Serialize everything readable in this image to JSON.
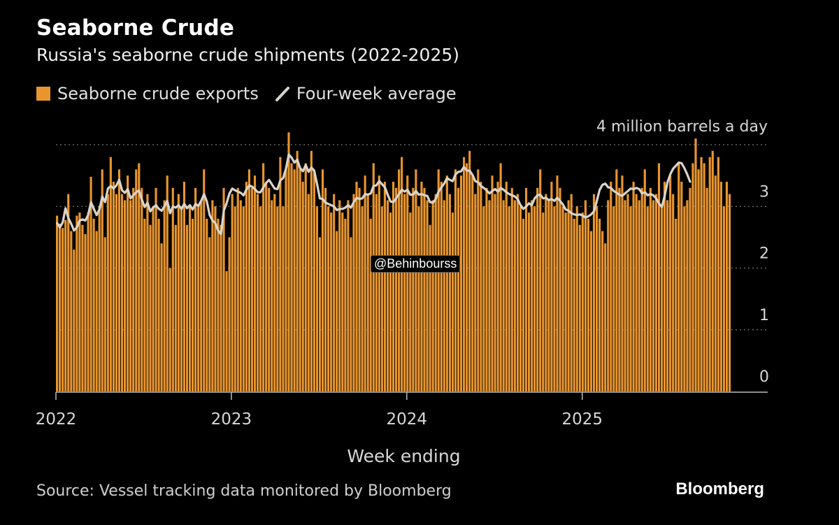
{
  "header": {
    "title": "Seaborne Crude",
    "subtitle": "Russia's seaborne crude shipments (2022-2025)"
  },
  "legend": {
    "bars_label": "Seaborne crude exports",
    "line_label": "Four-week average"
  },
  "source": "Source: Vessel tracking data monitored by Bloomberg",
  "brand": "Bloomberg",
  "watermark_tag": "@Behinbourss",
  "colors": {
    "bar": "#E8952E",
    "line": "#D9D5CC",
    "grid": "#777777",
    "background": "#000000"
  },
  "chart_data": {
    "type": "bar",
    "title": "Seaborne Crude",
    "subtitle": "Russia's seaborne crude shipments (2022-2025)",
    "xlabel": "Week ending",
    "ylabel": "",
    "ylim": [
      0,
      4
    ],
    "y_ticks": [
      0,
      1,
      2,
      3
    ],
    "top_annotation": "4 million barrels a day",
    "x_ticks": [
      "2022",
      "2023",
      "2024",
      "2025"
    ],
    "x_start": 2022.0,
    "x_end": 2025.85,
    "series": [
      {
        "name": "Seaborne crude exports",
        "type": "bar",
        "values": [
          2.85,
          2.72,
          2.65,
          2.78,
          3.2,
          2.6,
          2.3,
          2.85,
          2.9,
          2.7,
          2.55,
          2.9,
          3.48,
          2.8,
          2.6,
          3.0,
          3.6,
          2.5,
          3.2,
          3.8,
          3.4,
          3.2,
          3.6,
          3.2,
          3.1,
          3.5,
          3.1,
          3.3,
          3.6,
          3.7,
          3.3,
          2.8,
          3.2,
          2.7,
          3.0,
          3.3,
          2.8,
          2.4,
          3.1,
          3.5,
          2.0,
          3.3,
          2.7,
          3.2,
          3.0,
          3.4,
          2.7,
          3.0,
          2.8,
          3.3,
          3.0,
          3.1,
          3.6,
          2.8,
          2.5,
          3.1,
          3.0,
          2.8,
          2.7,
          3.3,
          1.95,
          2.5,
          3.2,
          3.0,
          3.3,
          3.1,
          3.0,
          3.4,
          3.6,
          3.3,
          3.5,
          3.2,
          3.0,
          3.7,
          3.4,
          3.3,
          3.1,
          3.2,
          3.0,
          3.8,
          3.0,
          3.6,
          4.2,
          3.7,
          3.6,
          3.9,
          3.6,
          3.4,
          3.7,
          3.2,
          3.9,
          3.6,
          3.0,
          2.5,
          3.6,
          3.3,
          3.0,
          2.9,
          3.2,
          2.6,
          3.1,
          2.9,
          2.8,
          3.1,
          2.5,
          3.2,
          3.4,
          3.3,
          3.0,
          3.5,
          3.2,
          2.8,
          3.7,
          3.2,
          3.5,
          3.0,
          3.4,
          3.1,
          2.9,
          3.4,
          3.3,
          3.6,
          3.8,
          3.2,
          3.5,
          2.9,
          3.3,
          3.6,
          3.0,
          3.4,
          3.3,
          3.1,
          2.7,
          3.1,
          3.2,
          3.6,
          3.4,
          3.1,
          3.5,
          3.2,
          2.9,
          3.6,
          3.3,
          3.5,
          3.8,
          3.7,
          3.9,
          3.5,
          3.2,
          3.6,
          3.4,
          3.0,
          3.3,
          3.1,
          3.5,
          3.2,
          3.4,
          3.7,
          3.1,
          3.4,
          3.0,
          3.3,
          3.1,
          3.2,
          3.0,
          2.8,
          3.3,
          2.9,
          3.1,
          3.0,
          3.3,
          3.6,
          2.9,
          3.2,
          3.1,
          3.4,
          3.0,
          3.5,
          3.3,
          3.0,
          2.9,
          3.1,
          3.2,
          2.8,
          3.0,
          2.7,
          2.9,
          3.1,
          2.8,
          2.6,
          3.2,
          3.0,
          2.8,
          2.6,
          2.4,
          3.1,
          3.4,
          3.0,
          3.6,
          3.3,
          3.5,
          3.1,
          3.2,
          3.0,
          3.4,
          3.2,
          3.1,
          3.3,
          3.6,
          3.0,
          3.3,
          3.1,
          3.2,
          3.7,
          3.0,
          3.4,
          3.1,
          3.5,
          3.2,
          2.8,
          3.7,
          3.4,
          3.0,
          3.1,
          3.3,
          3.7,
          4.1,
          3.6,
          3.8,
          3.7,
          3.3,
          3.8,
          3.9,
          3.5,
          3.8,
          3.4,
          3.0,
          3.4,
          3.2
        ]
      },
      {
        "name": "Four-week average",
        "type": "line",
        "values": [
          2.73,
          2.66,
          2.74,
          2.97,
          2.81,
          2.72,
          2.61,
          2.66,
          2.77,
          2.79,
          2.77,
          2.86,
          3.07,
          2.96,
          2.86,
          2.95,
          3.16,
          3.07,
          3.29,
          3.33,
          3.29,
          3.34,
          3.43,
          3.26,
          3.22,
          3.28,
          3.13,
          3.18,
          3.23,
          3.26,
          3.11,
          2.99,
          3.06,
          2.92,
          2.98,
          3.02,
          2.96,
          2.93,
          3.0,
          3.09,
          2.89,
          3.0,
          2.98,
          3.02,
          2.96,
          3.04,
          2.97,
          3.02,
          2.95,
          3.04,
          3.01,
          3.09,
          3.2,
          3.08,
          2.86,
          2.77,
          2.73,
          2.61,
          2.55,
          2.93,
          3.05,
          3.21,
          3.29,
          3.26,
          3.24,
          3.22,
          3.18,
          3.27,
          3.34,
          3.32,
          3.28,
          3.23,
          3.23,
          3.31,
          3.38,
          3.43,
          3.36,
          3.29,
          3.28,
          3.42,
          3.46,
          3.61,
          3.84,
          3.79,
          3.71,
          3.76,
          3.62,
          3.57,
          3.67,
          3.56,
          3.63,
          3.58,
          3.36,
          3.13,
          3.12,
          3.06,
          3.04,
          3.02,
          3.0,
          2.94,
          2.96,
          2.96,
          2.98,
          3.02,
          2.98,
          3.07,
          3.14,
          3.12,
          3.13,
          3.2,
          3.19,
          3.21,
          3.33,
          3.34,
          3.41,
          3.36,
          3.31,
          3.19,
          3.08,
          3.07,
          3.13,
          3.2,
          3.27,
          3.24,
          3.27,
          3.19,
          3.19,
          3.25,
          3.19,
          3.2,
          3.18,
          3.17,
          3.07,
          3.06,
          3.12,
          3.24,
          3.31,
          3.37,
          3.46,
          3.43,
          3.41,
          3.52,
          3.56,
          3.57,
          3.64,
          3.58,
          3.58,
          3.51,
          3.41,
          3.39,
          3.33,
          3.3,
          3.26,
          3.21,
          3.25,
          3.28,
          3.24,
          3.3,
          3.27,
          3.23,
          3.2,
          3.18,
          3.16,
          3.12,
          3.02,
          2.96,
          3.0,
          3.05,
          3.02,
          3.13,
          3.18,
          3.19,
          3.13,
          3.14,
          3.1,
          3.12,
          3.09,
          3.14,
          3.09,
          3.03,
          2.95,
          2.93,
          2.89,
          2.87,
          2.86,
          2.87,
          2.85,
          2.82,
          2.84,
          2.87,
          2.92,
          3.09,
          3.27,
          3.35,
          3.37,
          3.31,
          3.3,
          3.25,
          3.22,
          3.19,
          3.17,
          3.21,
          3.25,
          3.29,
          3.28,
          3.3,
          3.28,
          3.21,
          3.23,
          3.18,
          3.2,
          3.18,
          3.13,
          3.05,
          2.99,
          3.17,
          3.39,
          3.52,
          3.61,
          3.66,
          3.71,
          3.7,
          3.62,
          3.52,
          3.4
        ]
      }
    ]
  }
}
